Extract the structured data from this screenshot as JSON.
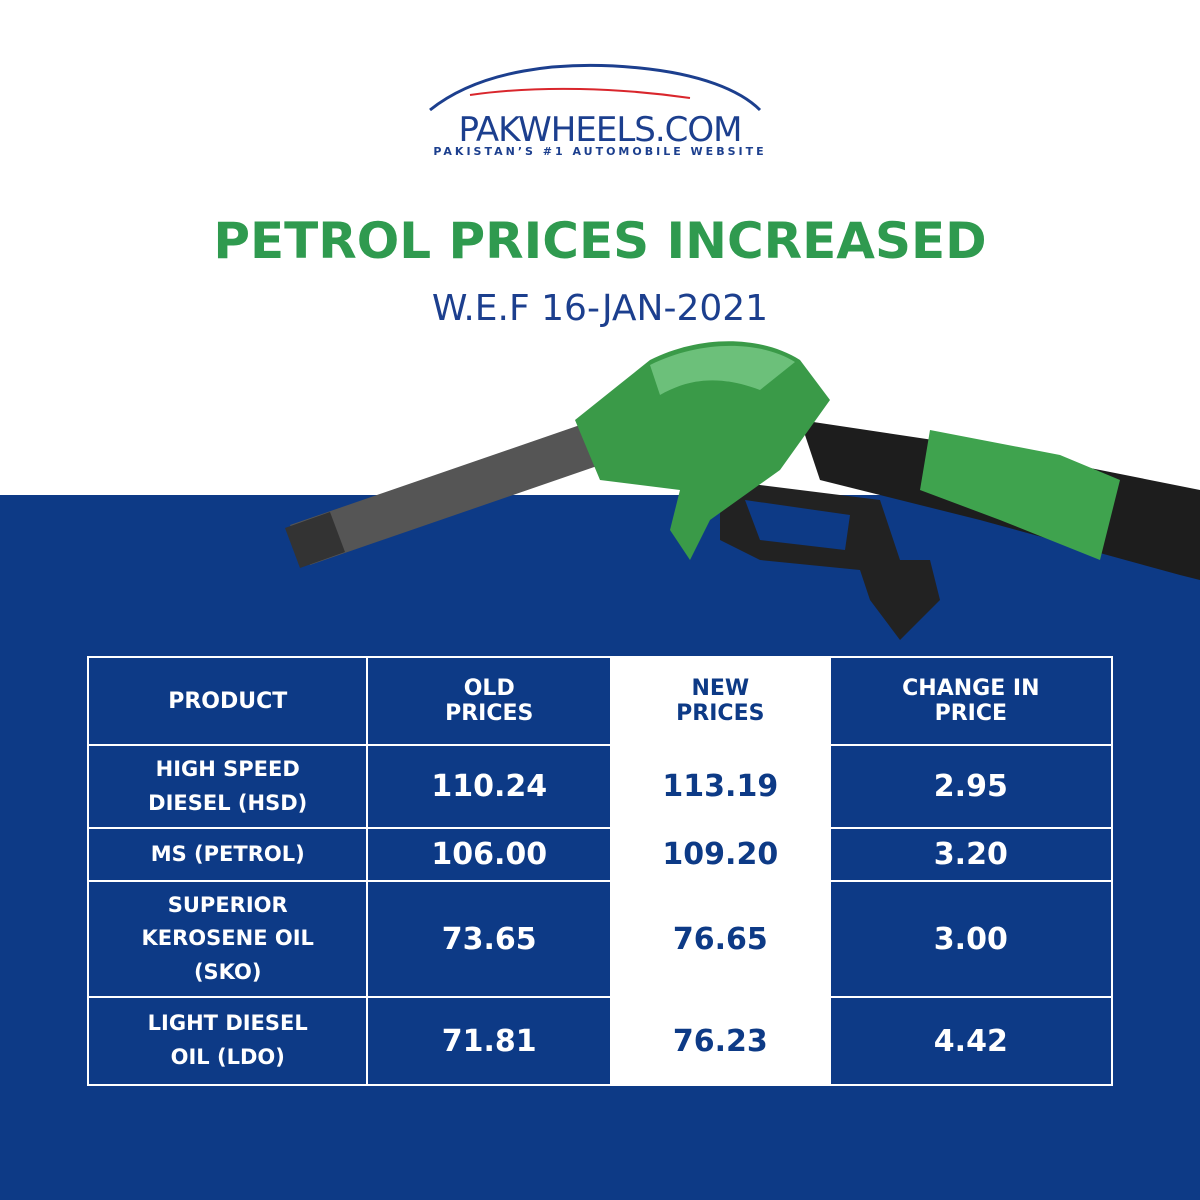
{
  "logo": {
    "name": "PAKWHEELS.COM",
    "tagline": "PAKISTAN’S #1 AUTOMOBILE WEBSITE"
  },
  "header": {
    "title": "PETROL PRICES INCREASED",
    "subtitle": "W.E.F 16-JAN-2021"
  },
  "table": {
    "columns": [
      "PRODUCT",
      "OLD PRICES",
      "NEW PRICES",
      "CHANGE IN PRICE"
    ],
    "rows": [
      [
        "HIGH SPEED DIESEL (HSD)",
        "110.24",
        "113.19",
        "2.95"
      ],
      [
        "MS (PETROL)",
        "106.00",
        "109.20",
        "3.20"
      ],
      [
        "SUPERIOR KEROSENE OIL (SKO)",
        "73.65",
        "76.65",
        "3.00"
      ],
      [
        "LIGHT DIESEL OIL (LDO)",
        "71.81",
        "76.23",
        "4.42"
      ]
    ]
  }
}
